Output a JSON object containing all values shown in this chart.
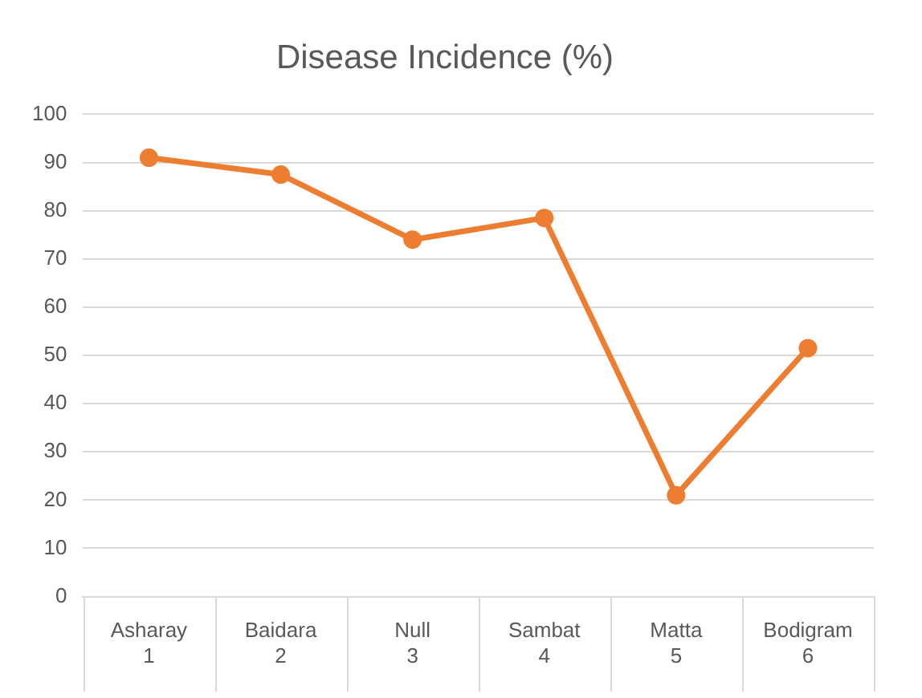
{
  "chart_data": {
    "type": "line",
    "title": "Disease Incidence (%)",
    "categories": [
      "Asharay\n1",
      "Baidara\n2",
      "Null\n3",
      "Sambat\n4",
      "Matta\n5",
      "Bodigram\n6"
    ],
    "series": [
      {
        "color": "#ed7d31",
        "values": [
          91,
          87.5,
          74,
          78.5,
          21,
          51.5
        ]
      }
    ],
    "ylim": [
      0,
      100
    ],
    "yticks": [
      0,
      10,
      20,
      30,
      40,
      50,
      60,
      70,
      80,
      90,
      100
    ],
    "grid": "y",
    "legend": false,
    "marker": "circle",
    "line_style": "solid"
  }
}
